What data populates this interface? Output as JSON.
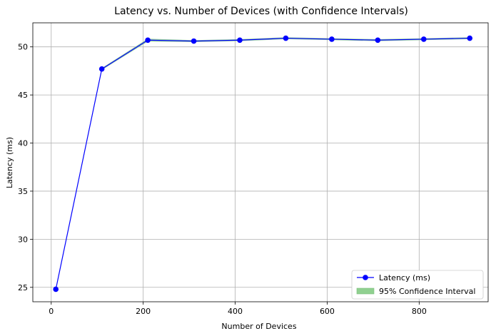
{
  "chart_data": {
    "type": "line",
    "title": "Latency vs. Number of Devices (with Confidence Intervals)",
    "xlabel": "Number of Devices",
    "ylabel": "Latency (ms)",
    "xlim": [
      -40,
      950
    ],
    "ylim": [
      23.5,
      52.5
    ],
    "xticks": [
      0,
      200,
      400,
      600,
      800
    ],
    "yticks": [
      25,
      30,
      35,
      40,
      45,
      50
    ],
    "grid": true,
    "legend_position": "lower right",
    "series": [
      {
        "name": "Latency (ms)",
        "color": "#0000ff",
        "marker": "circle",
        "x": [
          10,
          110,
          210,
          310,
          410,
          510,
          610,
          710,
          810,
          910
        ],
        "y": [
          24.8,
          47.7,
          50.7,
          50.6,
          50.7,
          50.9,
          50.8,
          50.7,
          50.8,
          50.9
        ]
      }
    ],
    "confidence_band": {
      "name": "95% Confidence Interval",
      "color": "#90d090",
      "x": [
        10,
        110,
        210,
        310,
        410,
        510,
        610,
        710,
        810,
        910
      ],
      "lower": [
        24.7,
        47.6,
        50.55,
        50.5,
        50.6,
        50.8,
        50.7,
        50.6,
        50.7,
        50.8
      ],
      "upper": [
        24.9,
        47.8,
        50.85,
        50.7,
        50.8,
        51.0,
        50.9,
        50.8,
        50.9,
        51.0
      ]
    }
  }
}
